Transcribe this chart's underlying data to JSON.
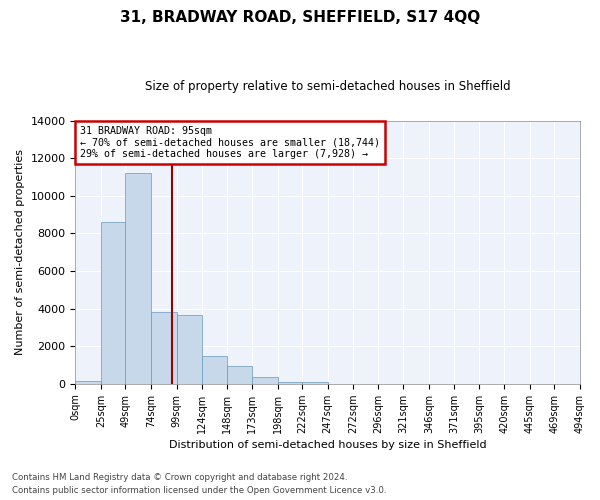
{
  "title": "31, BRADWAY ROAD, SHEFFIELD, S17 4QQ",
  "subtitle": "Size of property relative to semi-detached houses in Sheffield",
  "xlabel": "Distribution of semi-detached houses by size in Sheffield",
  "ylabel": "Number of semi-detached properties",
  "property_size": 95,
  "annotation_line1": "31 BRADWAY ROAD: 95sqm",
  "annotation_line2": "← 70% of semi-detached houses are smaller (18,744)",
  "annotation_line3": "29% of semi-detached houses are larger (7,928) →",
  "bar_color": "#c8d8eb",
  "bar_edge_color": "#6699bb",
  "vline_color": "#990000",
  "annotation_box_edgecolor": "#cc0000",
  "background_color": "#eef2fa",
  "footer_line1": "Contains HM Land Registry data © Crown copyright and database right 2024.",
  "footer_line2": "Contains public sector information licensed under the Open Government Licence v3.0.",
  "bin_labels": [
    "0sqm",
    "25sqm",
    "49sqm",
    "74sqm",
    "99sqm",
    "124sqm",
    "148sqm",
    "173sqm",
    "198sqm",
    "222sqm",
    "247sqm",
    "272sqm",
    "296sqm",
    "321sqm",
    "346sqm",
    "371sqm",
    "395sqm",
    "420sqm",
    "445sqm",
    "469sqm",
    "494sqm"
  ],
  "bin_edges": [
    0,
    25,
    49,
    74,
    99,
    124,
    148,
    173,
    198,
    222,
    247,
    272,
    296,
    321,
    346,
    371,
    395,
    420,
    445,
    469,
    494
  ],
  "bar_heights": [
    150,
    8600,
    11200,
    3800,
    3650,
    1500,
    950,
    350,
    120,
    100,
    0,
    0,
    0,
    0,
    0,
    0,
    0,
    0,
    0,
    0
  ],
  "ylim": [
    0,
    14000
  ],
  "yticks": [
    0,
    2000,
    4000,
    6000,
    8000,
    10000,
    12000,
    14000
  ]
}
